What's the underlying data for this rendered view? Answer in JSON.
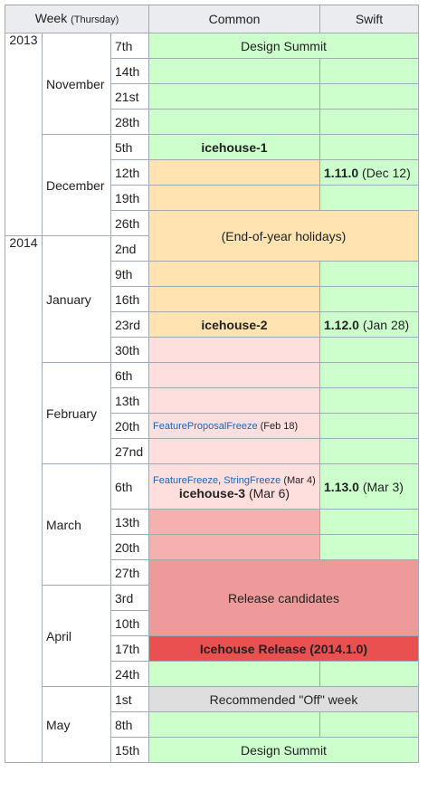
{
  "header": {
    "week_label": "Week",
    "week_sub": "(Thursday)",
    "common": "Common",
    "swift": "Swift"
  },
  "years": [
    "2013",
    "2014"
  ],
  "months": {
    "nov": "November",
    "dec": "December",
    "jan": "January",
    "feb": "February",
    "mar": "March",
    "apr": "April",
    "may": "May"
  },
  "days": {
    "nov7": "7th",
    "nov14": "14th",
    "nov21": "21st",
    "nov28": "28th",
    "dec5": "5th",
    "dec12": "12th",
    "dec19": "19th",
    "dec26": "26th",
    "jan2": "2nd",
    "jan9": "9th",
    "jan16": "16th",
    "jan23": "23rd",
    "jan30": "30th",
    "feb6": "6th",
    "feb13": "13th",
    "feb20": "20th",
    "feb27": "27nd",
    "mar6": "6th",
    "mar13": "13th",
    "mar20": "20th",
    "mar27": "27th",
    "apr3": "3rd",
    "apr10": "10th",
    "apr17": "17th",
    "apr24": "24th",
    "may1": "1st",
    "may8": "8th",
    "may15": "15th"
  },
  "events": {
    "design_summit_1": "Design Summit",
    "icehouse1": "icehouse-1",
    "swift_1110": "1.11.0",
    "swift_1110_date": "(Dec 12)",
    "holidays": "(End-of-year holidays)",
    "icehouse2": "icehouse-2",
    "swift_1120": "1.12.0",
    "swift_1120_date": "(Jan 28)",
    "fpf_link": "FeatureProposalFreeze",
    "fpf_date": "(Feb 18)",
    "ff_link": "FeatureFreeze",
    "ff_sep": ",",
    "sf_link": "StringFreeze",
    "ff_date": "(Mar 4)",
    "icehouse3": "icehouse-3",
    "icehouse3_date": "(Mar 6)",
    "swift_1130": "1.13.0",
    "swift_1130_date": "(Mar 3)",
    "release_candidates": "Release candidates",
    "icehouse_release": "Icehouse Release (2014.1.0)",
    "off_week": "Recommended \"Off\" week",
    "design_summit_2": "Design Summit"
  },
  "colors": {
    "green": "#ccffcc",
    "orange": "#ffe4b2",
    "pink": "#ffdede",
    "salmon": "#f6b0b0",
    "rc": "#ee9a9a",
    "release": "#ea5050",
    "grey": "#dedede",
    "link": "#1a66b8"
  }
}
